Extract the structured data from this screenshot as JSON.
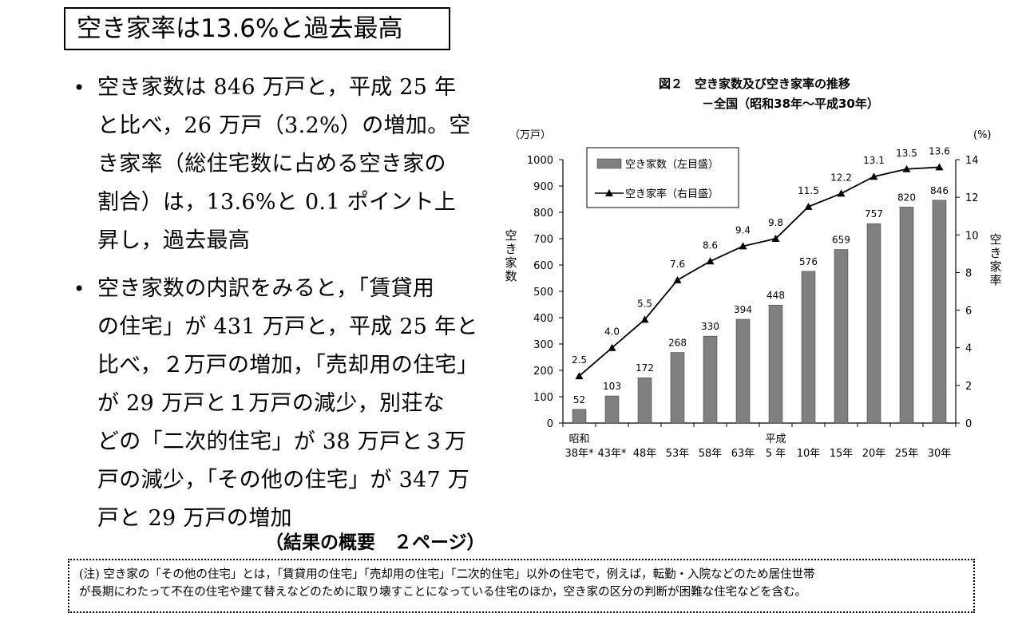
{
  "heading": "空き家率は13.6%と過去最高",
  "bullets": [
    {
      "lines": [
        "空き家数は 846 万戸と，平成 25 年",
        "と比べ，26 万戸（3.2%）の増加。空",
        "き家率（総住宅数に占める空き家の",
        "割合）は，13.6%と 0.1 ポイント上",
        "昇し，過去最高"
      ]
    },
    {
      "lines": [
        "空き家数の内訳をみると，「賃貸用",
        "の住宅」が 431 万戸と，平成 25 年と",
        "比べ，２万戸の増加，「売却用の住宅」",
        "が 29 万戸と１万戸の減少，別荘な",
        "どの「二次的住宅」が 38 万戸と３万",
        "戸の減少，「その他の住宅」が 347 万",
        "戸と 29 万戸の増加"
      ]
    }
  ],
  "source_ref": "（結果の概要　２ページ）",
  "note_lines": [
    "(注) 空き家の「その他の住宅」とは，「賃貸用の住宅」「売却用の住宅」「二次的住宅」以外の住宅で，例えば，転勤・入院などのため居住世帯",
    "が長期にわたって不在の住宅や建て替えなどのために取り壊すことになっている住宅のほか，空き家の区分の判断が困難な住宅などを含む。"
  ],
  "chart_data": {
    "type": "bar",
    "title": "図２　空き家数及び空き家率の推移",
    "subtitle": "－全国（昭和38年～平成30年）",
    "categories": [
      "38年*",
      "43年*",
      "48年",
      "53年",
      "58年",
      "63年",
      "5 年",
      "10年",
      "15年",
      "20年",
      "25年",
      "30年"
    ],
    "era_labels": [
      {
        "index": 0,
        "label": "昭和"
      },
      {
        "index": 6,
        "label": "平成"
      }
    ],
    "series": [
      {
        "name": "空き家数（左目盛）",
        "type": "bar",
        "axis": "left",
        "color": "#808080",
        "values": [
          52,
          103,
          172,
          268,
          330,
          394,
          448,
          576,
          659,
          757,
          820,
          846
        ],
        "labels": [
          "52",
          "103",
          "172",
          "268",
          "330",
          "394",
          "448",
          "576",
          "659",
          "757",
          "820",
          "846"
        ]
      },
      {
        "name": "空き家率（右目盛）",
        "type": "line",
        "axis": "right",
        "color": "#000000",
        "values": [
          2.5,
          4.0,
          5.5,
          7.6,
          8.6,
          9.4,
          9.8,
          11.5,
          12.2,
          13.1,
          13.5,
          13.6
        ],
        "labels": [
          "2.5",
          "4.0",
          "5.5",
          "7.6",
          "8.6",
          "9.4",
          "9.8",
          "11.5",
          "12.2",
          "13.1",
          "13.5",
          "13.6"
        ]
      }
    ],
    "left_axis": {
      "unit": "（万戸）",
      "label": "空き家数",
      "min": 0,
      "max": 1000,
      "ticks": [
        "0",
        "100",
        "200",
        "300",
        "400",
        "500",
        "600",
        "700",
        "800",
        "900",
        "1000"
      ]
    },
    "right_axis": {
      "unit": "(%)",
      "label": "空き家率",
      "min": 0,
      "max": 14,
      "ticks": [
        "0",
        "2",
        "4",
        "6",
        "8",
        "10",
        "12",
        "14"
      ]
    },
    "legend_position": "top-left"
  }
}
